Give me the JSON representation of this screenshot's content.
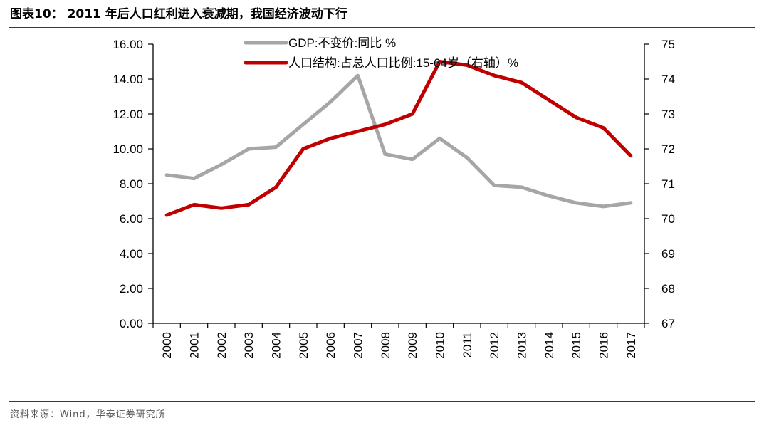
{
  "figure": {
    "title": "图表10：  2011 年后人口红利进入衰减期，我国经济波动下行",
    "source": "资料来源：Wind，华泰证券研究所"
  },
  "colors": {
    "accent": "#c00000",
    "gdp_series": "#a6a6a6",
    "population_series": "#c00000",
    "axis": "#000000"
  },
  "chart_data": {
    "type": "line",
    "title": "",
    "xlabel": "",
    "ylabel": "",
    "y2label": "",
    "grid": false,
    "legend_position": "top-center",
    "x": [
      "2000",
      "2001",
      "2002",
      "2003",
      "2004",
      "2005",
      "2006",
      "2007",
      "2008",
      "2009",
      "2010",
      "2011",
      "2012",
      "2013",
      "2014",
      "2015",
      "2016",
      "2017"
    ],
    "ylim": [
      0,
      16
    ],
    "y2lim": [
      67,
      75
    ],
    "y_ticks": [
      "0.00",
      "2.00",
      "4.00",
      "6.00",
      "8.00",
      "10.00",
      "12.00",
      "14.00",
      "16.00"
    ],
    "y2_ticks": [
      "67",
      "68",
      "69",
      "70",
      "71",
      "72",
      "73",
      "74",
      "75"
    ],
    "series": [
      {
        "name": "GDP:不变价:同比 %",
        "axis": "left",
        "color": "#a6a6a6",
        "values": [
          8.5,
          8.3,
          9.1,
          10.0,
          10.1,
          11.4,
          12.7,
          14.2,
          9.7,
          9.4,
          10.6,
          9.5,
          7.9,
          7.8,
          7.3,
          6.9,
          6.7,
          6.9
        ]
      },
      {
        "name": "人口结构:占总人口比例:15-64岁（右轴）%",
        "axis": "right",
        "color": "#c00000",
        "values": [
          70.1,
          70.4,
          70.3,
          70.4,
          70.9,
          72.0,
          72.3,
          72.5,
          72.7,
          73.0,
          74.5,
          74.4,
          74.1,
          73.9,
          73.4,
          72.9,
          72.6,
          71.8
        ]
      }
    ]
  }
}
